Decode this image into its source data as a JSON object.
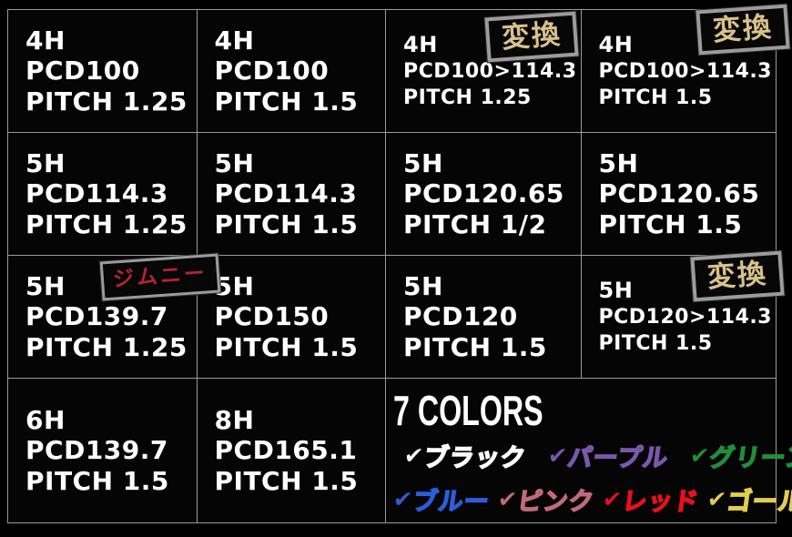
{
  "theme": {
    "background": "#000000",
    "text": "#ffffff",
    "grid_line": "#9a9a9a",
    "badge_frame": "#9b9b9b",
    "henkan_text_color": "#d9c18a",
    "jimny_text_color": "#b5242e"
  },
  "badges": {
    "henkan": "変換",
    "jimny": "ジムニー"
  },
  "grid": {
    "cells": [
      {
        "lines": [
          "4H",
          "PCD100",
          "PITCH 1.25"
        ]
      },
      {
        "lines": [
          "4H",
          "PCD100",
          "PITCH 1.5"
        ]
      },
      {
        "lines": [
          "4H",
          "PCD100>114.3",
          "PITCH 1.25"
        ],
        "badge": "変換"
      },
      {
        "lines": [
          "4H",
          "PCD100>114.3",
          "PITCH 1.5"
        ],
        "badge": "変換"
      },
      {
        "lines": [
          "5H",
          "PCD114.3",
          "PITCH 1.25"
        ]
      },
      {
        "lines": [
          "5H",
          "PCD114.3",
          "PITCH 1.5"
        ]
      },
      {
        "lines": [
          "5H",
          "PCD120.65",
          "PITCH 1/2"
        ]
      },
      {
        "lines": [
          "5H",
          "PCD120.65",
          "PITCH 1.5"
        ]
      },
      {
        "lines": [
          "5H",
          "PCD139.7",
          "PITCH 1.25"
        ],
        "badge": "ジムニー"
      },
      {
        "lines": [
          "5H",
          "PCD150",
          "PITCH 1.5"
        ]
      },
      {
        "lines": [
          "5H",
          "PCD120",
          "PITCH 1.5"
        ]
      },
      {
        "lines": [
          "5H",
          "PCD120>114.3",
          "PITCH 1.5"
        ],
        "badge": "変換"
      },
      {
        "lines": [
          "6H",
          "PCD139.7",
          "PITCH 1.5"
        ]
      },
      {
        "lines": [
          "8H",
          "PCD165.1",
          "PITCH 1.5"
        ]
      }
    ]
  },
  "colors_section": {
    "title": "7 COLORS",
    "checkmark": "✔",
    "options": [
      {
        "label": "ブラック",
        "color": "#ffffff"
      },
      {
        "label": "パープル",
        "color": "#7b57ad"
      },
      {
        "label": "グリーン",
        "color": "#1e9038"
      },
      {
        "label": "ブルー",
        "color": "#2c5ddb"
      },
      {
        "label": "ピンク",
        "color": "#c2697d"
      },
      {
        "label": "レッド",
        "color": "#e8101c"
      },
      {
        "label": "ゴールド",
        "color": "#e3cd4f"
      }
    ]
  }
}
